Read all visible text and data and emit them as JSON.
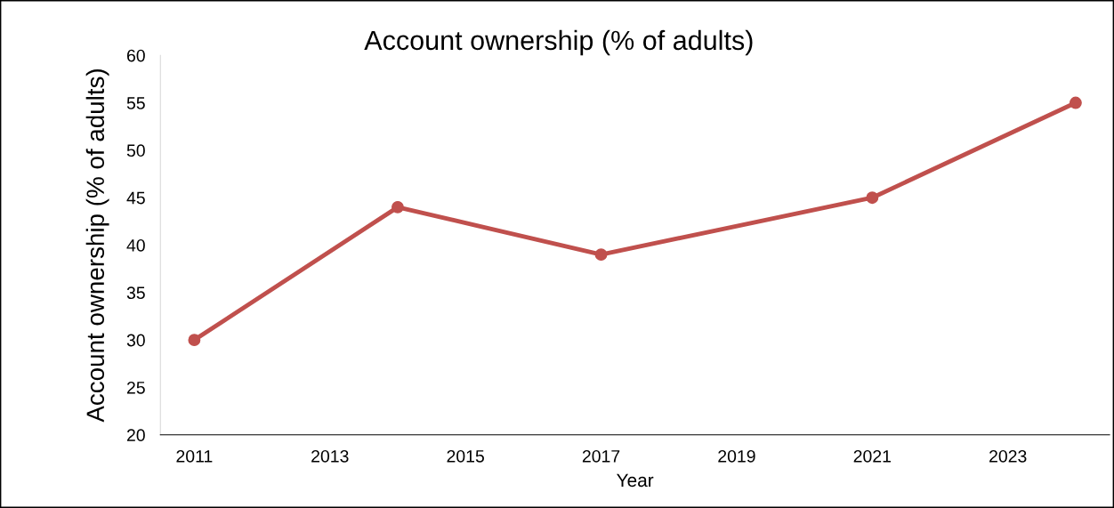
{
  "chart_data": {
    "type": "line",
    "title": "Account ownership (% of adults)",
    "xlabel": "Year",
    "ylabel": "Account ownership (% of adults)",
    "x": [
      2011,
      2014,
      2017,
      2021,
      2024
    ],
    "series": [
      {
        "color": "#c0504d",
        "values": [
          30,
          44,
          39,
          45,
          55
        ]
      }
    ],
    "xlim": [
      2010.5,
      2024.5
    ],
    "xticks": [
      2011,
      2013,
      2015,
      2017,
      2019,
      2021,
      2023
    ],
    "ylim": [
      20,
      60
    ],
    "yticks": [
      20,
      25,
      30,
      35,
      40,
      45,
      50,
      55,
      60
    ],
    "grid": false,
    "legend": false,
    "marker": "circle",
    "line_style": "solid"
  }
}
